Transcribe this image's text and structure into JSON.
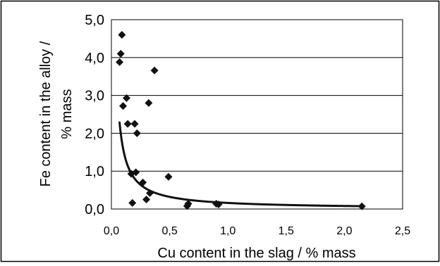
{
  "chart_data": {
    "type": "scatter",
    "title": "",
    "xlabel": "Cu content in the slag / % mass",
    "ylabel_line1": "Fe content in the alloy /",
    "ylabel_line2": "% mass",
    "xlim": [
      0,
      2.5
    ],
    "ylim": [
      0,
      5
    ],
    "x_ticks": [
      {
        "value": 0.0,
        "label": "0,0"
      },
      {
        "value": 0.5,
        "label": "0,5"
      },
      {
        "value": 1.0,
        "label": "1,0"
      },
      {
        "value": 1.5,
        "label": "1,5"
      },
      {
        "value": 2.0,
        "label": "2,0"
      },
      {
        "value": 2.5,
        "label": "2,5"
      }
    ],
    "y_ticks": [
      {
        "value": 0.0,
        "label": "0,0"
      },
      {
        "value": 1.0,
        "label": "1,0"
      },
      {
        "value": 2.0,
        "label": "2,0"
      },
      {
        "value": 3.0,
        "label": "3,0"
      },
      {
        "value": 4.0,
        "label": "4,0"
      },
      {
        "value": 5.0,
        "label": "5,0"
      }
    ],
    "grid": "horizontal",
    "legend": "none",
    "marker": "diamond",
    "marker_color": "#111111",
    "points": [
      {
        "x": 0.09,
        "y": 4.6
      },
      {
        "x": 0.08,
        "y": 4.1
      },
      {
        "x": 0.07,
        "y": 3.88
      },
      {
        "x": 0.1,
        "y": 2.72
      },
      {
        "x": 0.13,
        "y": 2.93
      },
      {
        "x": 0.14,
        "y": 2.25
      },
      {
        "x": 0.2,
        "y": 2.25
      },
      {
        "x": 0.22,
        "y": 2.0
      },
      {
        "x": 0.32,
        "y": 2.8
      },
      {
        "x": 0.37,
        "y": 3.66
      },
      {
        "x": 0.17,
        "y": 0.93
      },
      {
        "x": 0.21,
        "y": 0.97
      },
      {
        "x": 0.18,
        "y": 0.16
      },
      {
        "x": 0.27,
        "y": 0.7
      },
      {
        "x": 0.3,
        "y": 0.25
      },
      {
        "x": 0.33,
        "y": 0.42
      },
      {
        "x": 0.49,
        "y": 0.85
      },
      {
        "x": 0.65,
        "y": 0.08
      },
      {
        "x": 0.66,
        "y": 0.14
      },
      {
        "x": 0.9,
        "y": 0.14
      },
      {
        "x": 0.92,
        "y": 0.12
      },
      {
        "x": 2.15,
        "y": 0.07
      }
    ],
    "trend_line": {
      "type": "power",
      "coefficient": 0.16,
      "exponent": -1.0
    },
    "colors": {
      "axis": "#000000",
      "grid": "#000000",
      "frame": "#000000",
      "text": "#000000",
      "trend": "#111111"
    }
  }
}
